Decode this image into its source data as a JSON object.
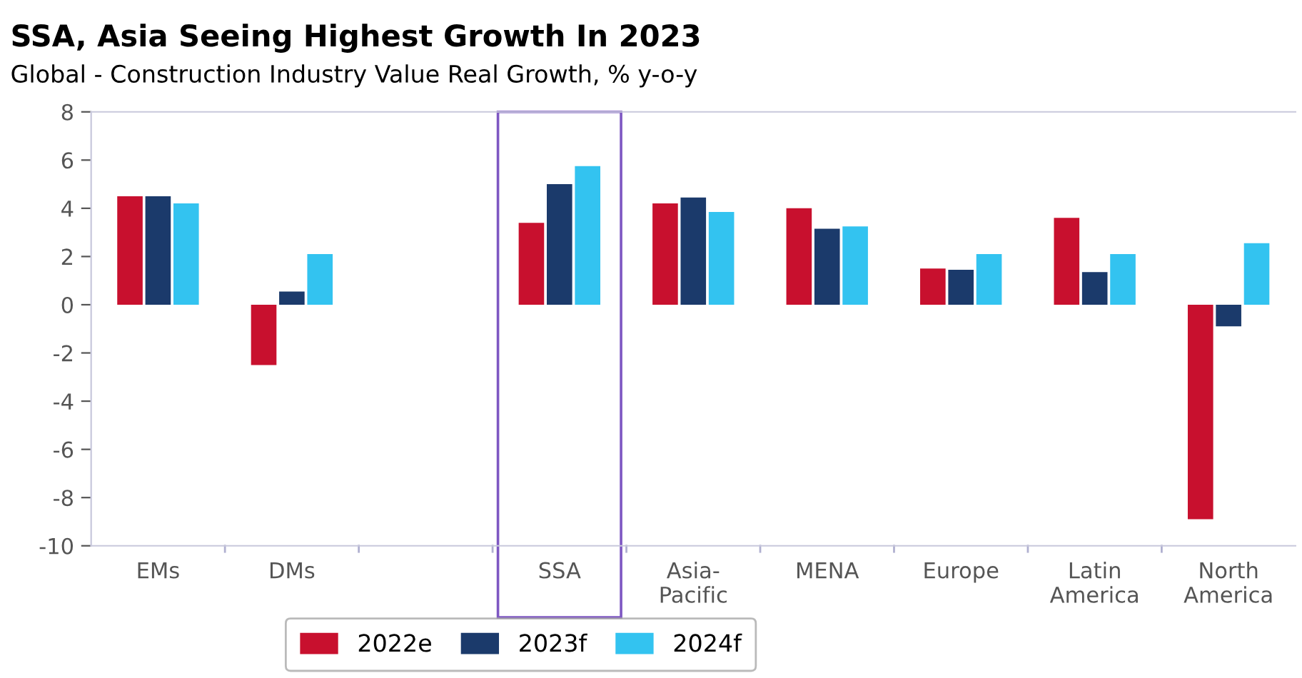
{
  "chart_data": {
    "type": "bar",
    "title": "SSA, Asia Seeing Highest Growth In 2023",
    "subtitle": "Global - Construction Industry Value Real Growth, % y-o-y",
    "categories": [
      "EMs",
      "DMs",
      null,
      "SSA",
      "Asia-\nPacific",
      "MENA",
      "Europe",
      "Latin\nAmerica",
      "North\nAmerica"
    ],
    "series": [
      {
        "name": "2022e",
        "color": "#c8102e",
        "values": [
          4.5,
          -2.5,
          null,
          3.4,
          4.2,
          4.0,
          1.5,
          3.6,
          -8.9
        ]
      },
      {
        "name": "2023f",
        "color": "#1b3a6b",
        "values": [
          4.5,
          0.55,
          null,
          5.0,
          4.45,
          3.15,
          1.45,
          1.35,
          -0.9
        ]
      },
      {
        "name": "2024f",
        "color": "#33c3f0",
        "values": [
          4.2,
          2.1,
          null,
          5.75,
          3.85,
          3.25,
          2.1,
          2.1,
          2.55
        ]
      }
    ],
    "ylim": [
      -10,
      8
    ],
    "yticks": [
      -10,
      -8,
      -6,
      -4,
      -2,
      0,
      2,
      4,
      6,
      8
    ],
    "grid": false,
    "legend": "bottom"
  }
}
